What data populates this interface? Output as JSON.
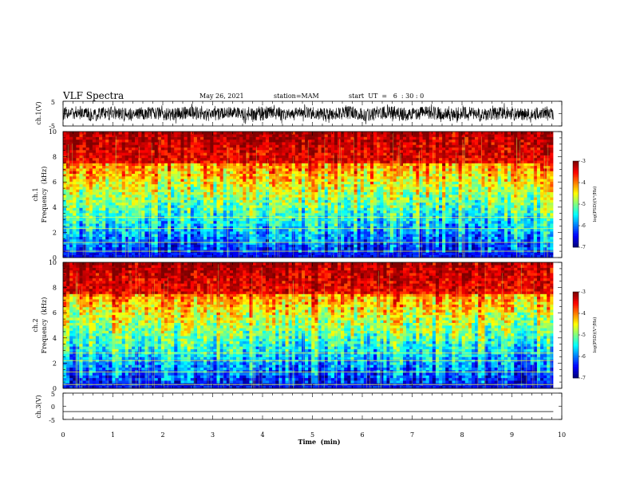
{
  "header": {
    "title": "VLF Spectra",
    "date": "May 26, 2021",
    "station": "station=MAM",
    "start": "start  UT  =   6  : 30 : 0"
  },
  "chart_data": [
    {
      "type": "line",
      "panel": "ch1-waveform",
      "ylabel": "ch.1(V)",
      "ylim": [
        -5,
        5
      ],
      "yticks": [
        "5",
        "-5"
      ],
      "x_range": [
        0,
        9.83
      ],
      "description_level": "noisy waveform mostly between -3 and 3"
    },
    {
      "type": "heatmap",
      "panel": "ch1-spectrogram",
      "ylabel_line1": "ch.1",
      "ylabel_line2": "Frequency  (kHz)",
      "ylim": [
        0,
        10
      ],
      "yticks": [
        "0",
        "2",
        "4",
        "6",
        "8",
        "10"
      ],
      "xlim": [
        0,
        10
      ],
      "x_data_end": 9.83,
      "colorbar": {
        "label": "log(PSD)(V²/Hz)",
        "range": [
          -7,
          -3
        ],
        "ticks": [
          "-3",
          "-4",
          "-5",
          "-6",
          "-7"
        ]
      },
      "persistent_lines_khz": [
        0.5,
        1.2,
        2.3,
        3.2
      ]
    },
    {
      "type": "heatmap",
      "panel": "ch2-spectrogram",
      "ylabel_line1": "ch.2",
      "ylabel_line2": "Frequency  (kHz)",
      "ylim": [
        0,
        10
      ],
      "yticks": [
        "0",
        "2",
        "4",
        "6",
        "8",
        "10"
      ],
      "xlim": [
        0,
        10
      ],
      "x_data_end": 9.83,
      "colorbar": {
        "label": "log(PSD)(V²/Hz)",
        "range": [
          -7,
          -3
        ],
        "ticks": [
          "-3",
          "-4",
          "-5",
          "-6",
          "-7"
        ]
      },
      "persistent_lines_khz": [
        0.3,
        1.3,
        2.2,
        2.8
      ]
    },
    {
      "type": "line",
      "panel": "ch3-waveform",
      "ylabel": "ch.3(V)",
      "ylim": [
        -5,
        5
      ],
      "yticks": [
        "5",
        "0",
        "-5"
      ],
      "x": [
        0,
        9.83
      ],
      "y": [
        -2,
        -2
      ]
    }
  ],
  "xaxis": {
    "label": "Time  (min)",
    "ticks": [
      "0",
      "1",
      "2",
      "3",
      "4",
      "5",
      "6",
      "7",
      "8",
      "9",
      "10"
    ]
  }
}
